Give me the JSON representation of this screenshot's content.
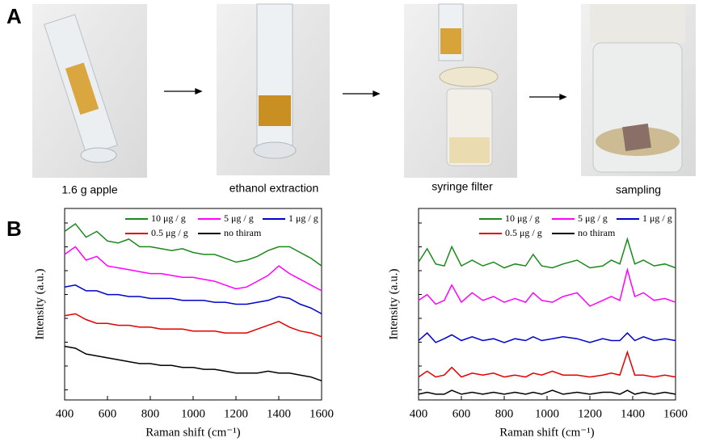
{
  "panel_labels": [
    "A",
    "B"
  ],
  "steps": [
    "1.6 g apple",
    "ethanol extraction",
    "syringe filter",
    "sampling"
  ],
  "chart_data": [
    {
      "type": "line",
      "xlabel": "Raman shift (cm⁻¹)",
      "ylabel": "Intensity (a.u.)",
      "x": [
        400,
        450,
        500,
        550,
        600,
        650,
        700,
        750,
        800,
        850,
        900,
        950,
        1000,
        1050,
        1100,
        1150,
        1200,
        1250,
        1300,
        1350,
        1400,
        1450,
        1500,
        1550,
        1600
      ],
      "xlim": [
        400,
        1600
      ],
      "xticks": [
        400,
        600,
        800,
        1000,
        1200,
        1400,
        1600
      ],
      "ylim": [
        0,
        100
      ],
      "series": [
        {
          "name": "10 μg / g",
          "color": "#1a8a1a",
          "values": [
            88,
            92,
            85,
            88,
            83,
            82,
            84,
            80,
            80,
            79,
            78,
            79,
            77,
            76,
            76,
            74,
            72,
            73,
            75,
            78,
            80,
            80,
            77,
            74,
            70
          ]
        },
        {
          "name": "5 μg / g",
          "color": "#ff00ff",
          "values": [
            76,
            80,
            73,
            75,
            70,
            69,
            68,
            67,
            66,
            66,
            65,
            64,
            64,
            63,
            62,
            60,
            58,
            59,
            62,
            65,
            70,
            66,
            63,
            60,
            57
          ]
        },
        {
          "name": "1 μg / g",
          "color": "#0000cc",
          "values": [
            59,
            60,
            57,
            57,
            55,
            55,
            54,
            54,
            53,
            53,
            53,
            52,
            52,
            52,
            51,
            51,
            50,
            50,
            51,
            52,
            54,
            53,
            50,
            48,
            45
          ]
        },
        {
          "name": "0.5 μg / g",
          "color": "#e00000",
          "values": [
            44,
            45,
            42,
            40,
            40,
            39,
            39,
            38,
            38,
            37,
            37,
            37,
            36,
            36,
            36,
            35,
            35,
            35,
            37,
            39,
            41,
            38,
            36,
            35,
            33
          ]
        },
        {
          "name": "no thiram",
          "color": "#000000",
          "values": [
            28,
            27,
            24,
            23,
            22,
            21,
            20,
            19,
            19,
            18,
            18,
            17,
            17,
            16,
            16,
            15,
            14,
            14,
            14,
            15,
            14,
            14,
            13,
            12,
            10
          ]
        }
      ]
    },
    {
      "type": "line",
      "xlabel": "Raman shift (cm⁻¹)",
      "ylabel": "Intensity (a.u.)",
      "x": [
        400,
        440,
        480,
        520,
        555,
        600,
        650,
        700,
        750,
        800,
        850,
        900,
        935,
        975,
        1025,
        1075,
        1140,
        1200,
        1260,
        1300,
        1340,
        1375,
        1410,
        1450,
        1500,
        1550,
        1600
      ],
      "xlim": [
        400,
        1600
      ],
      "xticks": [
        400,
        600,
        800,
        1000,
        1200,
        1400,
        1600
      ],
      "ylim": [
        0,
        100
      ],
      "series": [
        {
          "name": "10 μg / g",
          "color": "#1a8a1a",
          "values": [
            72,
            79,
            71,
            70,
            80,
            70,
            73,
            70,
            72,
            69,
            71,
            70,
            76,
            70,
            69,
            71,
            73,
            69,
            70,
            73,
            71,
            84,
            71,
            73,
            70,
            71,
            69
          ]
        },
        {
          "name": "5 μg / g",
          "color": "#ff00ff",
          "values": [
            52,
            55,
            50,
            52,
            60,
            51,
            56,
            52,
            54,
            51,
            53,
            51,
            56,
            52,
            51,
            54,
            56,
            49,
            52,
            54,
            52,
            68,
            54,
            56,
            52,
            53,
            51
          ]
        },
        {
          "name": "1 μg / g",
          "color": "#0000cc",
          "values": [
            31,
            35,
            30,
            32,
            34,
            31,
            33,
            31,
            32,
            30,
            32,
            31,
            33,
            31,
            32,
            33,
            32,
            30,
            32,
            31,
            31,
            35,
            31,
            33,
            31,
            32,
            31
          ]
        },
        {
          "name": "0.5 μg / g",
          "color": "#e00000",
          "values": [
            12,
            15,
            12,
            13,
            17,
            12,
            14,
            13,
            14,
            12,
            13,
            12,
            14,
            13,
            15,
            13,
            13,
            12,
            13,
            14,
            13,
            25,
            13,
            13,
            12,
            13,
            12
          ]
        },
        {
          "name": "no thiram",
          "color": "#000000",
          "values": [
            3,
            4,
            3,
            3,
            5,
            3,
            4,
            3,
            4,
            3,
            4,
            3,
            4,
            3,
            5,
            3,
            4,
            3,
            4,
            4,
            3,
            5,
            3,
            4,
            3,
            4,
            3
          ]
        }
      ]
    }
  ]
}
